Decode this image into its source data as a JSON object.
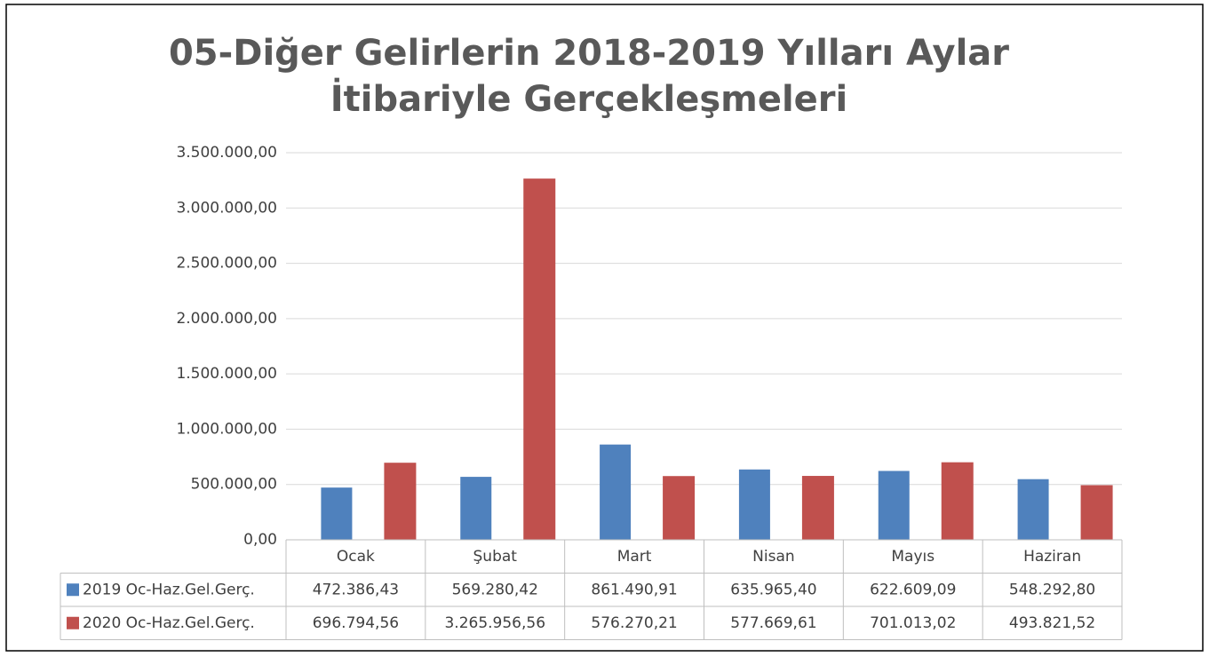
{
  "chart_data": {
    "type": "bar",
    "title": "05-Diğer Gelirlerin 2018-2019 Yılları Aylar",
    "subtitle": "İtibariyle Gerçekleşmeleri",
    "categories": [
      "Ocak",
      "Şubat",
      "Mart",
      "Nisan",
      "Mayıs",
      "Haziran"
    ],
    "series": [
      {
        "name": "2019 Oc-Haz.Gel.Gerç.",
        "color": "#4f81bd",
        "values": [
          472386.43,
          569280.42,
          861490.91,
          635965.4,
          622609.09,
          548292.8
        ],
        "value_labels": [
          "472.386,43",
          "569.280,42",
          "861.490,91",
          "635.965,40",
          "622.609,09",
          "548.292,80"
        ]
      },
      {
        "name": "2020 Oc-Haz.Gel.Gerç.",
        "color": "#c0504d",
        "values": [
          696794.56,
          3265956.56,
          576270.21,
          577669.61,
          701013.02,
          493821.52
        ],
        "value_labels": [
          "696.794,56",
          "3.265.956,56",
          "576.270,21",
          "577.669,61",
          "701.013,02",
          "493.821,52"
        ]
      }
    ],
    "ylim": [
      0,
      3500000
    ],
    "yticks": [
      {
        "value": 0,
        "label": "0,00"
      },
      {
        "value": 500000,
        "label": "500.000,00"
      },
      {
        "value": 1000000,
        "label": "1.000.000,00"
      },
      {
        "value": 1500000,
        "label": "1.500.000,00"
      },
      {
        "value": 2000000,
        "label": "2.000.000,00"
      },
      {
        "value": 2500000,
        "label": "2.500.000,00"
      },
      {
        "value": 3000000,
        "label": "3.000.000,00"
      },
      {
        "value": 3500000,
        "label": "3.500.000,00"
      }
    ],
    "grid": true
  }
}
